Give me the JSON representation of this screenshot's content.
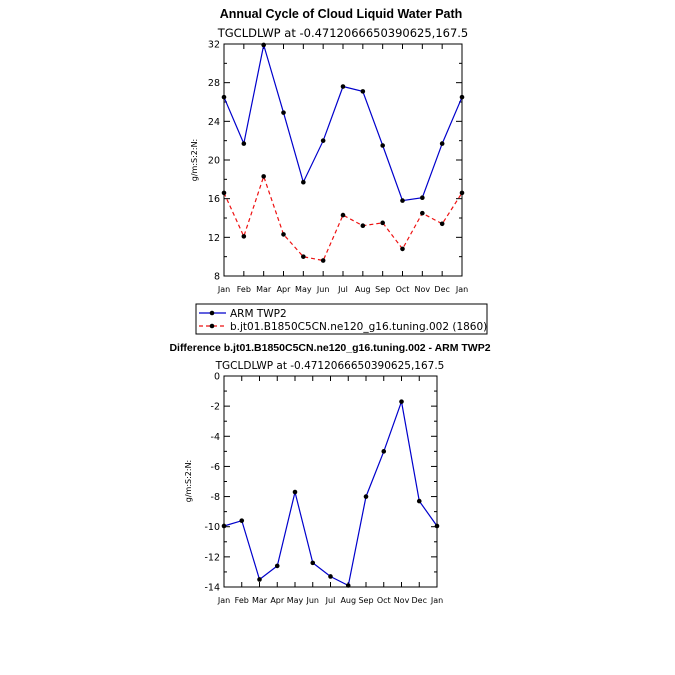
{
  "chart_data": [
    {
      "type": "line",
      "title": "Annual Cycle of Cloud Liquid Water Path",
      "subtitle": "TGCLDLWP  at  -0.4712066650390625,167.5",
      "ylabel": "g/m:S:2:N:",
      "xlabel": "",
      "categories": [
        "Jan",
        "Feb",
        "Mar",
        "Apr",
        "May",
        "Jun",
        "Jul",
        "Aug",
        "Sep",
        "Oct",
        "Nov",
        "Dec",
        "Jan"
      ],
      "ylim": [
        8,
        32
      ],
      "yticks": [
        "8",
        "12",
        "16",
        "20",
        "24",
        "28",
        "32"
      ],
      "legend_position": "bottom",
      "series": [
        {
          "name": "ARM TWP2",
          "color": "#0000cc",
          "dash": "solid",
          "values": [
            26.5,
            21.7,
            31.9,
            24.9,
            17.7,
            22.0,
            27.6,
            27.1,
            21.5,
            15.8,
            16.1,
            21.7,
            26.5
          ]
        },
        {
          "name": "b.jt01.B1850C5CN.ne120_g16.tuning.002 (1860)",
          "color": "#ee1111",
          "dash": "dashed",
          "values": [
            16.6,
            12.1,
            18.3,
            12.3,
            10.0,
            9.6,
            14.3,
            13.2,
            13.5,
            10.8,
            14.5,
            13.4,
            16.6
          ]
        }
      ]
    },
    {
      "type": "line",
      "title": "Difference b.jt01.B1850C5CN.ne120_g16.tuning.002 - ARM TWP2",
      "subtitle": "TGCLDLWP  at  -0.4712066650390625,167.5",
      "ylabel": "g/m:S:2:N:",
      "xlabel": "",
      "categories": [
        "Jan",
        "Feb",
        "Mar",
        "Apr",
        "May",
        "Jun",
        "Jul",
        "Aug",
        "Sep",
        "Oct",
        "Nov",
        "Dec",
        "Jan"
      ],
      "ylim": [
        -14,
        0
      ],
      "yticks": [
        "-14",
        "-12",
        "-10",
        "-8",
        "-6",
        "-4",
        "-2",
        "0"
      ],
      "series": [
        {
          "color": "#0000cc",
          "dash": "solid",
          "values": [
            -9.95,
            -9.6,
            -13.5,
            -12.6,
            -7.7,
            -12.4,
            -13.3,
            -13.9,
            -8.0,
            -5.0,
            -1.7,
            -8.3,
            -9.95
          ]
        }
      ]
    }
  ]
}
